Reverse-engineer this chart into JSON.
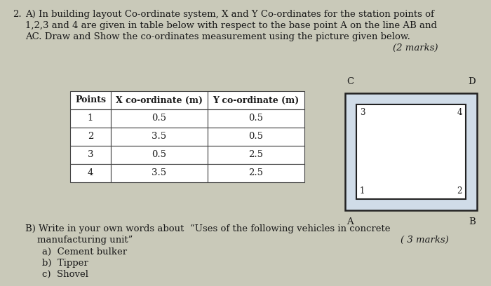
{
  "bg_color": "#c9c9b9",
  "text_color": "#1a1a1a",
  "fs_body": 9.5,
  "fs_small": 8.5,
  "question_number": "2.",
  "line1": "A) In building layout Co-ordinate system, X and Y Co-ordinates for the station points of",
  "line2": "1,2,3 and 4 are given in table below with respect to the base point A on the line AB and",
  "line3": "AC. Draw and Show the co-ordinates measurement using the picture given below.",
  "marks_a": "(2 marks)",
  "table_headers": [
    "Points",
    "X co-ordinate (m)",
    "Y co-ordinate (m)"
  ],
  "table_data": [
    [
      "1",
      "0.5",
      "0.5"
    ],
    [
      "2",
      "3.5",
      "0.5"
    ],
    [
      "3",
      "0.5",
      "2.5"
    ],
    [
      "4",
      "3.5",
      "2.5"
    ]
  ],
  "question_b_line1": "B) Write in your own words about  “Uses of the following vehicles in concrete",
  "question_b_line2": "    manufacturing unit”",
  "marks_b": "( 3 marks)",
  "items_b": [
    "a)  Cement bulker",
    "b)  Tipper",
    "c)  Shovel"
  ]
}
